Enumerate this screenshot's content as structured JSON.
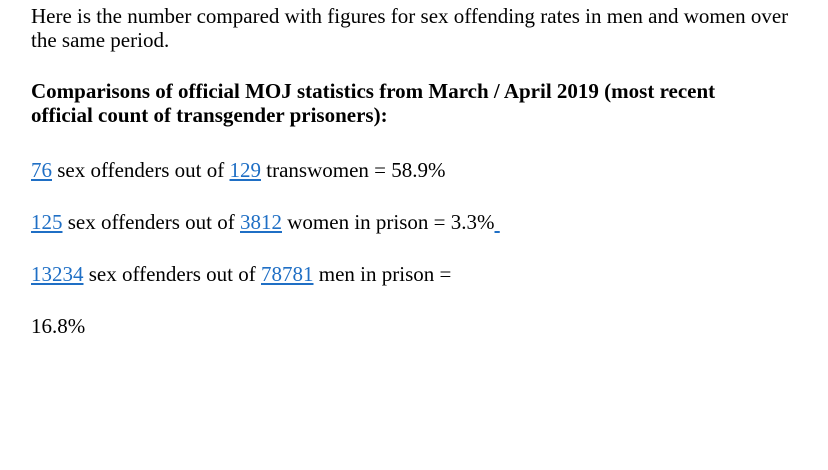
{
  "intro": {
    "line1": "Here is the number compared with figures for sex offending rates in men and women over",
    "line2": "the same period."
  },
  "heading": {
    "line1": "Comparisons of official MOJ statistics from March / April 2019 (most recent",
    "line2": "official count of transgender prisoners):"
  },
  "stats": [
    {
      "offenders": "76",
      "text1": " sex offenders out of ",
      "total": "129",
      "text2": " transwomen = 58.9%"
    },
    {
      "offenders": "125",
      "text1": " sex offenders out of ",
      "total": "3812",
      "text2": " women in prison = 3.3%"
    },
    {
      "offenders": "13234",
      "text1": " sex offenders out of ",
      "total": "78781",
      "text2": " men in prison ="
    }
  ],
  "trailing_percent": "16.8%",
  "colors": {
    "link": "#1f6fc5",
    "text": "#000000",
    "background": "#ffffff"
  }
}
